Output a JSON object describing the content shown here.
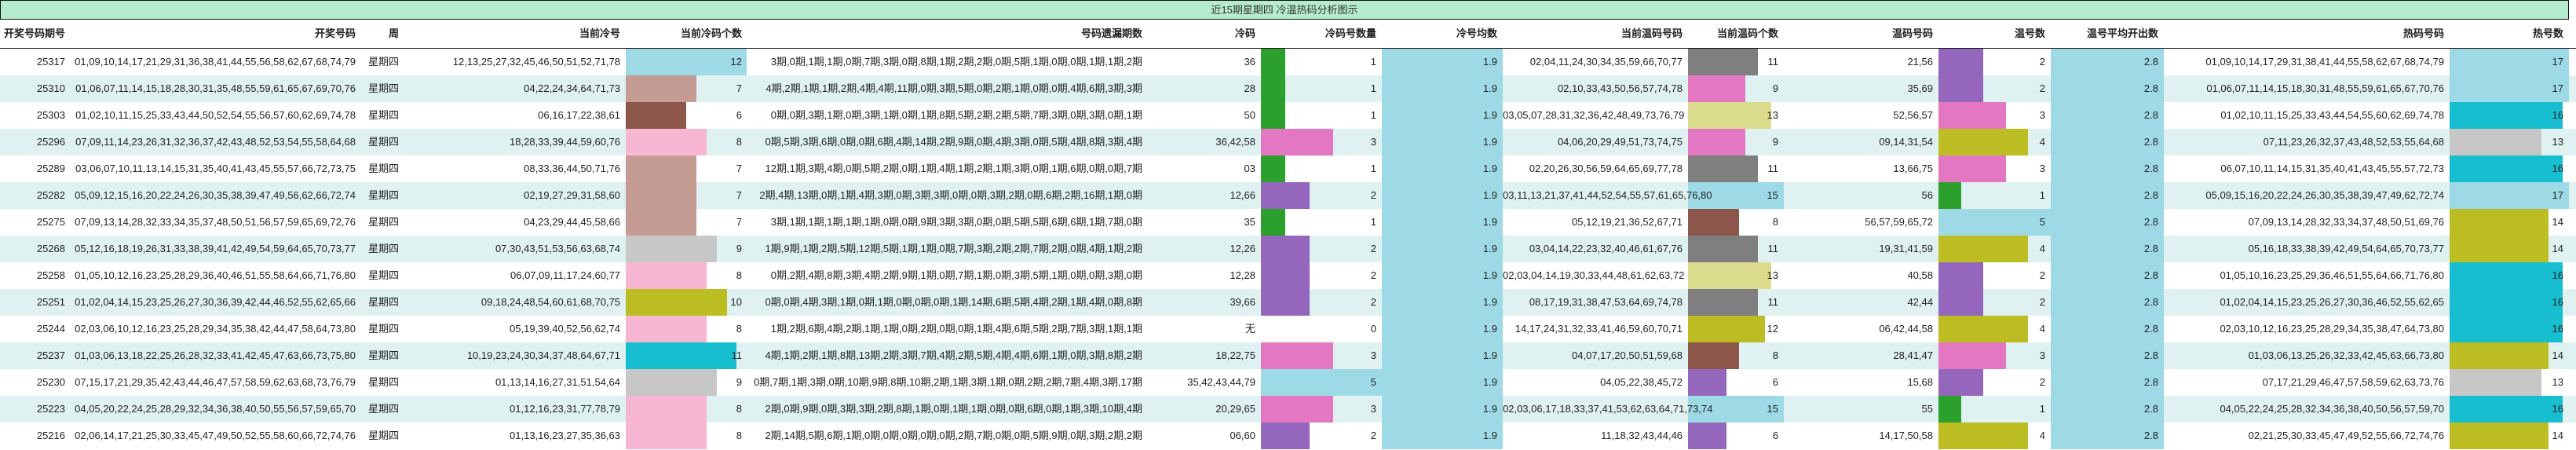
{
  "title": "近15期星期四 冷温热码分析图示",
  "headers": [
    "开奖号码期号",
    "开奖号码",
    "周",
    "当前冷号",
    "当前冷码个数",
    "号码遗漏期数",
    "冷码",
    "冷码号数量",
    "冷号均数",
    "当前温码号码",
    "当前温码个数",
    "温码号码",
    "温号数",
    "温号平均开出数",
    "热码号码",
    "热号数"
  ],
  "bar_colors": {
    "cold_count": {
      "6": "#8c564b",
      "7": "#c49c94",
      "8": "#f7b6d2",
      "9": "#c7c7c7",
      "10": "#bcbd22",
      "11": "#17becf",
      "12": "#9edae5"
    },
    "cold_code_count": {
      "1": "#2ca02c",
      "2": "#9467bd",
      "3": "#e377c2",
      "5": "#9edae5"
    },
    "warm_count": {
      "6": "#9467bd",
      "8": "#8c564b",
      "9": "#e377c2",
      "11": "#7f7f7f",
      "12": "#bcbd22",
      "13": "#dbdb8d",
      "15": "#9edae5"
    },
    "warm_code_count": {
      "1": "#2ca02c",
      "2": "#9467bd",
      "3": "#e377c2",
      "4": "#bcbd22",
      "5": "#9edae5"
    },
    "hot_count": {
      "13": "#c7c7c7",
      "14": "#bcbd22",
      "16": "#17becf",
      "17": "#9edae5"
    },
    "average": "#9edae5"
  },
  "rows": [
    {
      "issue": "25317",
      "numbers": "01,09,10,14,17,21,29,31,36,38,41,44,55,56,58,62,67,68,74,79",
      "weekday": "星期四",
      "cold": "12,13,25,27,32,45,46,50,51,52,71,78",
      "cold_count": 12,
      "omission": "3期,0期,1期,1期,0期,7期,3期,0期,8期,1期,2期,2期,0期,5期,1期,0期,0期,1期,1期,2期",
      "cold_code": "36",
      "cold_code_count": 1,
      "cold_avg": 1.9,
      "warm": "02,04,11,24,30,34,35,59,66,70,77",
      "warm_count": 11,
      "warm_code": "21,56",
      "warm_code_count": 2,
      "warm_avg": 2.8,
      "hot": "01,09,10,14,17,29,31,38,41,44,55,58,62,67,68,74,79",
      "hot_count": 17
    },
    {
      "issue": "25310",
      "numbers": "01,06,07,11,14,15,18,28,30,31,35,48,55,59,61,65,67,69,70,76",
      "weekday": "星期四",
      "cold": "04,22,24,34,64,71,73",
      "cold_count": 7,
      "omission": "4期,2期,1期,1期,2期,4期,4期,11期,0期,3期,5期,0期,2期,1期,0期,0期,4期,6期,3期,3期",
      "cold_code": "28",
      "cold_code_count": 1,
      "cold_avg": 1.9,
      "warm": "02,10,33,43,50,56,57,74,78",
      "warm_count": 9,
      "warm_code": "35,69",
      "warm_code_count": 2,
      "warm_avg": 2.8,
      "hot": "01,06,07,11,14,15,18,30,31,48,55,59,61,65,67,70,76",
      "hot_count": 17
    },
    {
      "issue": "25303",
      "numbers": "01,02,10,11,15,25,33,43,44,50,52,54,55,56,57,60,62,69,74,78",
      "weekday": "星期四",
      "cold": "06,16,17,22,38,61",
      "cold_count": 6,
      "omission": "0期,0期,3期,1期,0期,3期,1期,0期,1期,8期,5期,2期,2期,5期,7期,3期,0期,3期,0期,1期",
      "cold_code": "50",
      "cold_code_count": 1,
      "cold_avg": 1.9,
      "warm": "03,05,07,28,31,32,36,42,48,49,73,76,79",
      "warm_count": 13,
      "warm_code": "52,56,57",
      "warm_code_count": 3,
      "warm_avg": 2.8,
      "hot": "01,02,10,11,15,25,33,43,44,54,55,60,62,69,74,78",
      "hot_count": 16
    },
    {
      "issue": "25296",
      "numbers": "07,09,11,14,23,26,31,32,36,37,42,43,48,52,53,54,55,58,64,68",
      "weekday": "星期四",
      "cold": "18,28,33,39,44,59,60,76",
      "cold_count": 8,
      "omission": "0期,5期,3期,6期,0期,0期,6期,4期,14期,2期,9期,0期,4期,3期,0期,5期,4期,8期,3期,4期",
      "cold_code": "36,42,58",
      "cold_code_count": 3,
      "cold_avg": 1.9,
      "warm": "04,06,20,29,49,51,73,74,75",
      "warm_count": 9,
      "warm_code": "09,14,31,54",
      "warm_code_count": 4,
      "warm_avg": 2.8,
      "hot": "07,11,23,26,32,37,43,48,52,53,55,64,68",
      "hot_count": 13
    },
    {
      "issue": "25289",
      "numbers": "03,06,07,10,11,13,14,15,31,35,40,41,43,45,55,57,66,72,73,75",
      "weekday": "星期四",
      "cold": "08,33,36,44,50,71,76",
      "cold_count": 7,
      "omission": "12期,1期,3期,4期,0期,5期,2期,0期,1期,4期,1期,2期,1期,3期,0期,1期,6期,0期,0期,7期",
      "cold_code": "03",
      "cold_code_count": 1,
      "cold_avg": 1.9,
      "warm": "02,20,26,30,56,59,64,65,69,77,78",
      "warm_count": 11,
      "warm_code": "13,66,75",
      "warm_code_count": 3,
      "warm_avg": 2.8,
      "hot": "06,07,10,11,14,15,31,35,40,41,43,45,55,57,72,73",
      "hot_count": 16
    },
    {
      "issue": "25282",
      "numbers": "05,09,12,15,16,20,22,24,26,30,35,38,39,47,49,56,62,66,72,74",
      "weekday": "星期四",
      "cold": "02,19,27,29,31,58,60",
      "cold_count": 7,
      "omission": "2期,4期,13期,0期,1期,4期,3期,0期,3期,3期,0期,0期,3期,2期,0期,6期,2期,16期,1期,0期",
      "cold_code": "12,66",
      "cold_code_count": 2,
      "cold_avg": 1.9,
      "warm": "03,11,13,21,37,41,44,52,54,55,57,61,65,76,80",
      "warm_count": 15,
      "warm_code": "56",
      "warm_code_count": 1,
      "warm_avg": 2.8,
      "hot": "05,09,15,16,20,22,24,26,30,35,38,39,47,49,62,72,74",
      "hot_count": 17
    },
    {
      "issue": "25275",
      "numbers": "07,09,13,14,28,32,33,34,35,37,48,50,51,56,57,59,65,69,72,76",
      "weekday": "星期四",
      "cold": "04,23,29,44,45,58,66",
      "cold_count": 7,
      "omission": "3期,1期,1期,1期,1期,1期,0期,0期,9期,3期,3期,0期,0期,5期,5期,6期,6期,1期,7期,0期",
      "cold_code": "35",
      "cold_code_count": 1,
      "cold_avg": 1.9,
      "warm": "05,12,19,21,36,52,67,71",
      "warm_count": 8,
      "warm_code": "56,57,59,65,72",
      "warm_code_count": 5,
      "warm_avg": 2.8,
      "hot": "07,09,13,14,28,32,33,34,37,48,50,51,69,76",
      "hot_count": 14
    },
    {
      "issue": "25268",
      "numbers": "05,12,16,18,19,26,31,33,38,39,41,42,49,54,59,64,65,70,73,77",
      "weekday": "星期四",
      "cold": "07,30,43,51,53,56,63,68,74",
      "cold_count": 9,
      "omission": "1期,9期,1期,2期,5期,12期,5期,1期,1期,0期,7期,3期,2期,2期,7期,2期,0期,4期,1期,2期",
      "cold_code": "12,26",
      "cold_code_count": 2,
      "cold_avg": 1.9,
      "warm": "03,04,14,22,23,32,40,46,61,67,76",
      "warm_count": 11,
      "warm_code": "19,31,41,59",
      "warm_code_count": 4,
      "warm_avg": 2.8,
      "hot": "05,16,18,33,38,39,42,49,54,64,65,70,73,77",
      "hot_count": 14
    },
    {
      "issue": "25258",
      "numbers": "01,05,10,12,16,23,25,28,29,36,40,46,51,55,58,64,66,71,76,80",
      "weekday": "星期四",
      "cold": "06,07,09,11,17,24,60,77",
      "cold_count": 8,
      "omission": "0期,2期,4期,8期,3期,4期,2期,9期,1期,0期,7期,1期,0期,3期,5期,1期,0期,0期,3期,0期",
      "cold_code": "12,28",
      "cold_code_count": 2,
      "cold_avg": 1.9,
      "warm": "02,03,04,14,19,30,33,44,48,61,62,63,72",
      "warm_count": 13,
      "warm_code": "40,58",
      "warm_code_count": 2,
      "warm_avg": 2.8,
      "hot": "01,05,10,16,23,25,29,36,46,51,55,64,66,71,76,80",
      "hot_count": 16
    },
    {
      "issue": "25251",
      "numbers": "01,02,04,14,15,23,25,26,27,30,36,39,42,44,46,52,55,62,65,66",
      "weekday": "星期四",
      "cold": "09,18,24,48,54,60,61,68,70,75",
      "cold_count": 10,
      "omission": "0期,0期,4期,3期,1期,0期,1期,0期,0期,0期,1期,14期,6期,5期,4期,2期,1期,4期,0期,8期",
      "cold_code": "39,66",
      "cold_code_count": 2,
      "cold_avg": 1.9,
      "warm": "08,17,19,31,38,47,53,64,69,74,78",
      "warm_count": 11,
      "warm_code": "42,44",
      "warm_code_count": 2,
      "warm_avg": 2.8,
      "hot": "01,02,04,14,15,23,25,26,27,30,36,46,52,55,62,65",
      "hot_count": 16
    },
    {
      "issue": "25244",
      "numbers": "02,03,06,10,12,16,23,25,28,29,34,35,38,42,44,47,58,64,73,80",
      "weekday": "星期四",
      "cold": "05,19,39,40,52,56,62,74",
      "cold_count": 8,
      "omission": "1期,2期,6期,4期,2期,1期,1期,0期,2期,0期,0期,1期,4期,6期,5期,2期,7期,3期,1期,1期",
      "cold_code": "无",
      "cold_code_count": 0,
      "cold_avg": 1.9,
      "warm": "14,17,24,31,32,33,41,46,59,60,70,71",
      "warm_count": 12,
      "warm_code": "06,42,44,58",
      "warm_code_count": 4,
      "warm_avg": 2.8,
      "hot": "02,03,10,12,16,23,25,28,29,34,35,38,47,64,73,80",
      "hot_count": 16
    },
    {
      "issue": "25237",
      "numbers": "01,03,06,13,18,22,25,26,28,32,33,41,42,45,47,63,66,73,75,80",
      "weekday": "星期四",
      "cold": "10,19,23,24,30,34,37,48,64,67,71",
      "cold_count": 11,
      "omission": "4期,1期,2期,1期,8期,13期,2期,3期,7期,4期,2期,5期,4期,4期,6期,1期,0期,3期,8期,2期",
      "cold_code": "18,22,75",
      "cold_code_count": 3,
      "cold_avg": 1.9,
      "warm": "04,07,17,20,50,51,59,68",
      "warm_count": 8,
      "warm_code": "28,41,47",
      "warm_code_count": 3,
      "warm_avg": 2.8,
      "hot": "01,03,06,13,25,26,32,33,42,45,63,66,73,80",
      "hot_count": 14
    },
    {
      "issue": "25230",
      "numbers": "07,15,17,21,29,35,42,43,44,46,47,57,58,59,62,63,68,73,76,79",
      "weekday": "星期四",
      "cold": "01,13,14,16,27,31,51,54,64",
      "cold_count": 9,
      "omission": "0期,7期,1期,3期,0期,10期,9期,8期,10期,2期,1期,3期,1期,0期,2期,2期,7期,4期,3期,17期",
      "cold_code": "35,42,43,44,79",
      "cold_code_count": 5,
      "cold_avg": 1.9,
      "warm": "04,05,22,38,45,72",
      "warm_count": 6,
      "warm_code": "15,68",
      "warm_code_count": 2,
      "warm_avg": 2.8,
      "hot": "07,17,21,29,46,47,57,58,59,62,63,73,76",
      "hot_count": 13
    },
    {
      "issue": "25223",
      "numbers": "04,05,20,22,24,25,28,29,32,34,36,38,40,50,55,56,57,59,65,70",
      "weekday": "星期四",
      "cold": "01,12,16,23,31,77,78,79",
      "cold_count": 8,
      "omission": "2期,0期,9期,0期,3期,3期,2期,8期,1期,0期,1期,1期,0期,0期,6期,0期,1期,3期,10期,4期",
      "cold_code": "20,29,65",
      "cold_code_count": 3,
      "cold_avg": 1.9,
      "warm": "02,03,06,17,18,33,37,41,53,62,63,64,71,73,74",
      "warm_count": 15,
      "warm_code": "55",
      "warm_code_count": 1,
      "warm_avg": 2.8,
      "hot": "04,05,22,24,25,28,32,34,36,38,40,50,56,57,59,70",
      "hot_count": 16
    },
    {
      "issue": "25216",
      "numbers": "02,06,14,17,21,25,30,33,45,47,49,50,52,55,58,60,66,72,74,76",
      "weekday": "星期四",
      "cold": "01,13,16,23,27,35,36,63",
      "cold_count": 8,
      "omission": "2期,14期,5期,6期,1期,0期,0期,0期,0期,0期,2期,7期,0期,0期,5期,9期,0期,3期,2期,2期",
      "cold_code": "06,60",
      "cold_code_count": 2,
      "cold_avg": 1.9,
      "warm": "11,18,32,43,44,46",
      "warm_count": 6,
      "warm_code": "14,17,50,58",
      "warm_code_count": 4,
      "warm_avg": 2.8,
      "hot": "02,21,25,30,33,45,47,49,52,55,66,72,74,76",
      "hot_count": 14
    }
  ]
}
